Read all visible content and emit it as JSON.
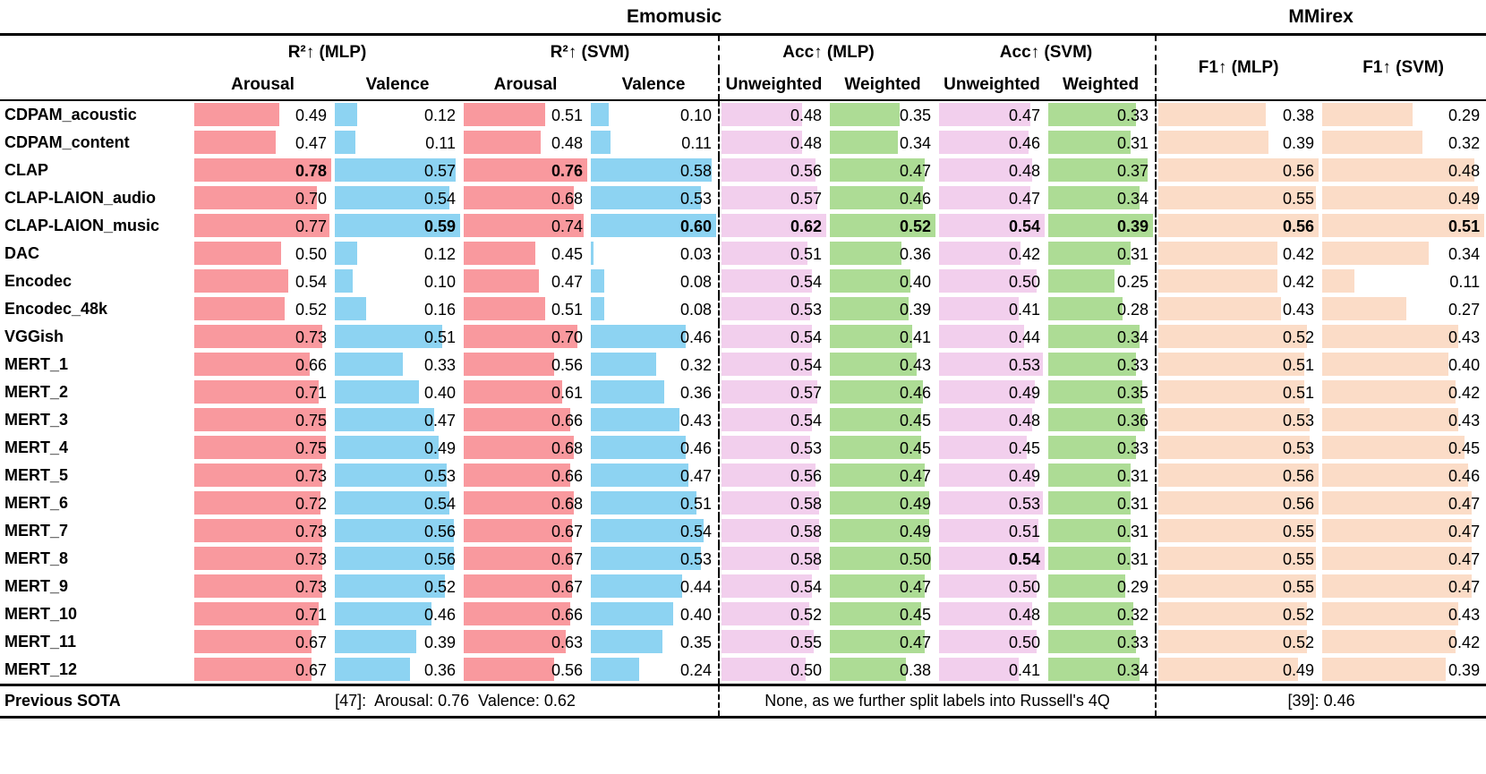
{
  "chart_data": {
    "type": "table",
    "dataset_titles": {
      "left": "Emomusic",
      "right": "MMirex"
    },
    "column_groups": [
      {
        "label": "R²↑ (MLP)",
        "cols": [
          "Arousal",
          "Valence"
        ]
      },
      {
        "label": "R²↑ (SVM)",
        "cols": [
          "Arousal",
          "Valence"
        ]
      },
      {
        "label": "Acc↑ (MLP)",
        "cols": [
          "Unweighted",
          "Weighted"
        ]
      },
      {
        "label": "Acc↑ (SVM)",
        "cols": [
          "Unweighted",
          "Weighted"
        ]
      },
      {
        "label": "F1↑ (MLP)"
      },
      {
        "label": "F1↑ (SVM)"
      }
    ],
    "columns": [
      {
        "id": "r2_mlp_arousal",
        "color": "#F9999E",
        "scale_max": 0.78
      },
      {
        "id": "r2_mlp_valence",
        "color": "#8DD3F2",
        "scale_max": 0.59
      },
      {
        "id": "r2_svm_arousal",
        "color": "#F9999E",
        "scale_max": 0.76
      },
      {
        "id": "r2_svm_valence",
        "color": "#8DD3F2",
        "scale_max": 0.6
      },
      {
        "id": "acc_mlp_unweighted",
        "color": "#F2CFED",
        "scale_max": 0.62
      },
      {
        "id": "acc_mlp_weighted",
        "color": "#ADDC95",
        "scale_max": 0.52
      },
      {
        "id": "acc_svm_unweighted",
        "color": "#F2CFED",
        "scale_max": 0.54
      },
      {
        "id": "acc_svm_weighted",
        "color": "#ADDC95",
        "scale_max": 0.39
      },
      {
        "id": "f1_mlp",
        "color": "#FBDCC7",
        "scale_max": 0.56
      },
      {
        "id": "f1_svm",
        "color": "#FBDCC7",
        "scale_max": 0.51
      }
    ],
    "rows": [
      {
        "label": "CDPAM_acoustic",
        "values": [
          "0.49",
          "0.12",
          "0.51",
          "0.10",
          "0.48",
          "0.35",
          "0.47",
          "0.33",
          "0.38",
          "0.29"
        ],
        "bold": []
      },
      {
        "label": "CDPAM_content",
        "values": [
          "0.47",
          "0.11",
          "0.48",
          "0.11",
          "0.48",
          "0.34",
          "0.46",
          "0.31",
          "0.39",
          "0.32"
        ],
        "bold": []
      },
      {
        "label": "CLAP",
        "values": [
          "0.78",
          "0.57",
          "0.76",
          "0.58",
          "0.56",
          "0.47",
          "0.48",
          "0.37",
          "0.56",
          "0.48"
        ],
        "bold": [
          0,
          2
        ]
      },
      {
        "label": "CLAP-LAION_audio",
        "values": [
          "0.70",
          "0.54",
          "0.68",
          "0.53",
          "0.57",
          "0.46",
          "0.47",
          "0.34",
          "0.55",
          "0.49"
        ],
        "bold": []
      },
      {
        "label": "CLAP-LAION_music",
        "values": [
          "0.77",
          "0.59",
          "0.74",
          "0.60",
          "0.62",
          "0.52",
          "0.54",
          "0.39",
          "0.56",
          "0.51"
        ],
        "bold": [
          1,
          3,
          4,
          5,
          6,
          7,
          8,
          9
        ]
      },
      {
        "label": "DAC",
        "values": [
          "0.50",
          "0.12",
          "0.45",
          "0.03",
          "0.51",
          "0.36",
          "0.42",
          "0.31",
          "0.42",
          "0.34"
        ],
        "bold": []
      },
      {
        "label": "Encodec",
        "values": [
          "0.54",
          "0.10",
          "0.47",
          "0.08",
          "0.54",
          "0.40",
          "0.50",
          "0.25",
          "0.42",
          "0.11"
        ],
        "bold": []
      },
      {
        "label": "Encodec_48k",
        "values": [
          "0.52",
          "0.16",
          "0.51",
          "0.08",
          "0.53",
          "0.39",
          "0.41",
          "0.28",
          "0.43",
          "0.27"
        ],
        "bold": []
      },
      {
        "label": "VGGish",
        "values": [
          "0.73",
          "0.51",
          "0.70",
          "0.46",
          "0.54",
          "0.41",
          "0.44",
          "0.34",
          "0.52",
          "0.43"
        ],
        "bold": []
      },
      {
        "label": "MERT_1",
        "values": [
          "0.66",
          "0.33",
          "0.56",
          "0.32",
          "0.54",
          "0.43",
          "0.53",
          "0.33",
          "0.51",
          "0.40"
        ],
        "bold": []
      },
      {
        "label": "MERT_2",
        "values": [
          "0.71",
          "0.40",
          "0.61",
          "0.36",
          "0.57",
          "0.46",
          "0.49",
          "0.35",
          "0.51",
          "0.42"
        ],
        "bold": []
      },
      {
        "label": "MERT_3",
        "values": [
          "0.75",
          "0.47",
          "0.66",
          "0.43",
          "0.54",
          "0.45",
          "0.48",
          "0.36",
          "0.53",
          "0.43"
        ],
        "bold": []
      },
      {
        "label": "MERT_4",
        "values": [
          "0.75",
          "0.49",
          "0.68",
          "0.46",
          "0.53",
          "0.45",
          "0.45",
          "0.33",
          "0.53",
          "0.45"
        ],
        "bold": []
      },
      {
        "label": "MERT_5",
        "values": [
          "0.73",
          "0.53",
          "0.66",
          "0.47",
          "0.56",
          "0.47",
          "0.49",
          "0.31",
          "0.56",
          "0.46"
        ],
        "bold": []
      },
      {
        "label": "MERT_6",
        "values": [
          "0.72",
          "0.54",
          "0.68",
          "0.51",
          "0.58",
          "0.49",
          "0.53",
          "0.31",
          "0.56",
          "0.47"
        ],
        "bold": []
      },
      {
        "label": "MERT_7",
        "values": [
          "0.73",
          "0.56",
          "0.67",
          "0.54",
          "0.58",
          "0.49",
          "0.51",
          "0.31",
          "0.55",
          "0.47"
        ],
        "bold": []
      },
      {
        "label": "MERT_8",
        "values": [
          "0.73",
          "0.56",
          "0.67",
          "0.53",
          "0.58",
          "0.50",
          "0.54",
          "0.31",
          "0.55",
          "0.47"
        ],
        "bold": [
          6
        ]
      },
      {
        "label": "MERT_9",
        "values": [
          "0.73",
          "0.52",
          "0.67",
          "0.44",
          "0.54",
          "0.47",
          "0.50",
          "0.29",
          "0.55",
          "0.47"
        ],
        "bold": []
      },
      {
        "label": "MERT_10",
        "values": [
          "0.71",
          "0.46",
          "0.66",
          "0.40",
          "0.52",
          "0.45",
          "0.48",
          "0.32",
          "0.52",
          "0.43"
        ],
        "bold": []
      },
      {
        "label": "MERT_11",
        "values": [
          "0.67",
          "0.39",
          "0.63",
          "0.35",
          "0.55",
          "0.47",
          "0.50",
          "0.33",
          "0.52",
          "0.42"
        ],
        "bold": []
      },
      {
        "label": "MERT_12",
        "values": [
          "0.67",
          "0.36",
          "0.56",
          "0.24",
          "0.50",
          "0.38",
          "0.41",
          "0.34",
          "0.49",
          "0.39"
        ],
        "bold": []
      }
    ],
    "footer": {
      "label": "Previous SOTA",
      "r2_note": "[47]:  Arousal: 0.76  Valence: 0.62",
      "acc_note": "None, as we further split labels into Russell's 4Q",
      "f1_note": "[39]: 0.46"
    }
  }
}
